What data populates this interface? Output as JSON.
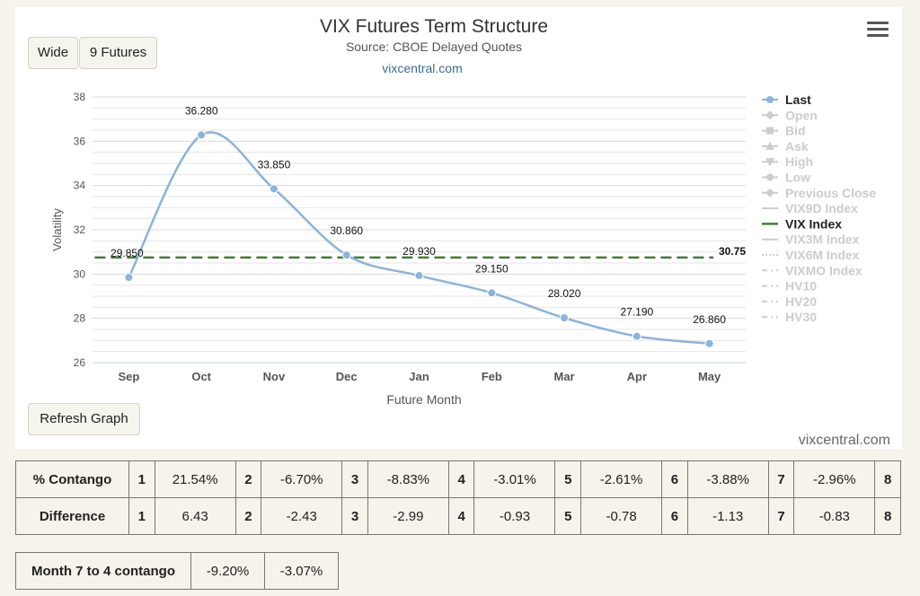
{
  "buttons": {
    "wide": "Wide",
    "futures": "9 Futures",
    "refresh": "Refresh Graph"
  },
  "menu_icon": "hamburger-menu-icon",
  "credit": "vixcentral.com",
  "chart_data": {
    "type": "line",
    "title": "VIX Futures Term Structure",
    "subtitle": "Source: CBOE Delayed Quotes",
    "site": "vixcentral.com",
    "xlabel": "Future Month",
    "ylabel": "Volatility",
    "categories": [
      "Sep",
      "Oct",
      "Nov",
      "Dec",
      "Jan",
      "Feb",
      "Mar",
      "Apr",
      "May"
    ],
    "ylim": [
      26,
      38
    ],
    "yticks": [
      "26",
      "28",
      "30",
      "32",
      "34",
      "36",
      "38"
    ],
    "grid": true,
    "legend_position": "right",
    "series": [
      {
        "name": "Last",
        "values": [
          29.85,
          36.28,
          33.85,
          30.86,
          29.93,
          29.15,
          28.02,
          27.19,
          26.86
        ],
        "labels": [
          "29.850",
          "36.280",
          "33.850",
          "30.860",
          "29.930",
          "29.150",
          "28.020",
          "27.190",
          "26.860"
        ],
        "color": "#8cb3db"
      },
      {
        "name": "VIX Index",
        "value": 30.75,
        "label": "30.75",
        "color": "#3f7f33",
        "style": "dashed"
      }
    ],
    "legend": [
      {
        "name": "Last",
        "active": true,
        "marker": "circle"
      },
      {
        "name": "Open",
        "active": false,
        "marker": "diamond"
      },
      {
        "name": "Bid",
        "active": false,
        "marker": "square"
      },
      {
        "name": "Ask",
        "active": false,
        "marker": "triangle"
      },
      {
        "name": "High",
        "active": false,
        "marker": "triangle-down"
      },
      {
        "name": "Low",
        "active": false,
        "marker": "circle"
      },
      {
        "name": "Previous Close",
        "active": false,
        "marker": "diamond"
      },
      {
        "name": "VIX9D Index",
        "active": false,
        "marker": "line"
      },
      {
        "name": "VIX Index",
        "active": true,
        "marker": "dash-green"
      },
      {
        "name": "VIX3M Index",
        "active": false,
        "marker": "line"
      },
      {
        "name": "VIX6M Index",
        "active": false,
        "marker": "dotted"
      },
      {
        "name": "VIXMO Index",
        "active": false,
        "marker": "dashdot"
      },
      {
        "name": "HV10",
        "active": false,
        "marker": "dashdot"
      },
      {
        "name": "HV20",
        "active": false,
        "marker": "dashdot"
      },
      {
        "name": "HV30",
        "active": false,
        "marker": "dashdot"
      }
    ]
  },
  "contango_table": {
    "rows": [
      {
        "label": "% Contango",
        "cells": [
          {
            "idx": "1",
            "val": "21.54%"
          },
          {
            "idx": "2",
            "val": "-6.70%"
          },
          {
            "idx": "3",
            "val": "-8.83%"
          },
          {
            "idx": "4",
            "val": "-3.01%"
          },
          {
            "idx": "5",
            "val": "-2.61%"
          },
          {
            "idx": "6",
            "val": "-3.88%"
          },
          {
            "idx": "7",
            "val": "-2.96%"
          },
          {
            "idx": "8",
            "val": ""
          }
        ]
      },
      {
        "label": "Difference",
        "cells": [
          {
            "idx": "1",
            "val": "6.43"
          },
          {
            "idx": "2",
            "val": "-2.43"
          },
          {
            "idx": "3",
            "val": "-2.99"
          },
          {
            "idx": "4",
            "val": "-0.93"
          },
          {
            "idx": "5",
            "val": "-0.78"
          },
          {
            "idx": "6",
            "val": "-1.13"
          },
          {
            "idx": "7",
            "val": "-0.83"
          },
          {
            "idx": "8",
            "val": ""
          }
        ]
      }
    ]
  },
  "month_table": {
    "label": "Month 7 to 4 contango",
    "values": [
      "-9.20%",
      "-3.07%"
    ]
  }
}
